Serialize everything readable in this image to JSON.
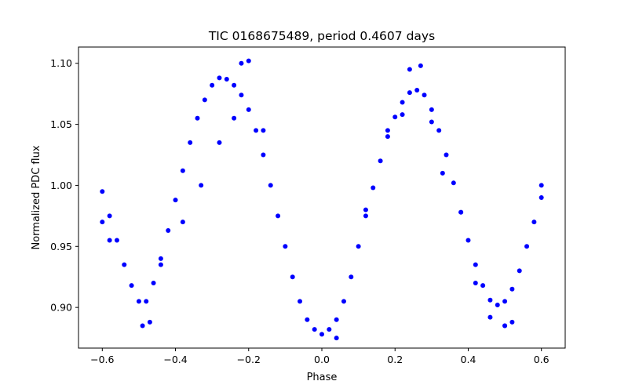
{
  "chart_data": {
    "type": "scatter",
    "title": "TIC 0168675489, period 0.4607 days",
    "xlabel": "Phase",
    "ylabel": "Normalized PDC flux",
    "xlim": [
      -0.665,
      0.665
    ],
    "ylim": [
      0.8667,
      1.1133
    ],
    "xticks": [
      -0.6,
      -0.4,
      -0.2,
      0.0,
      0.2,
      0.4,
      0.6
    ],
    "xtick_labels": [
      "−0.6",
      "−0.4",
      "−0.2",
      "0.0",
      "0.2",
      "0.4",
      "0.6"
    ],
    "yticks": [
      0.9,
      0.95,
      1.0,
      1.05,
      1.1
    ],
    "ytick_labels": [
      "0.90",
      "0.95",
      "1.00",
      "1.05",
      "1.10"
    ],
    "grid": false,
    "marker_color": "#0000ff",
    "series": [
      {
        "x": [
          -0.6,
          -0.58,
          -0.56,
          -0.54,
          -0.52,
          -0.5,
          -0.48,
          -0.46,
          -0.44,
          -0.42,
          -0.4,
          -0.38,
          -0.36,
          -0.34,
          -0.32,
          -0.3,
          -0.28,
          -0.26,
          -0.24,
          -0.22,
          -0.2,
          -0.18,
          -0.16,
          -0.14,
          -0.12,
          -0.1,
          -0.08,
          -0.06,
          -0.04,
          -0.02,
          0.0,
          0.02,
          0.04,
          0.06,
          0.08,
          0.1,
          0.12,
          0.14,
          0.16,
          0.18,
          0.2,
          0.22,
          0.24,
          0.26,
          0.28,
          0.3,
          0.32,
          0.34,
          0.36,
          0.38,
          0.4,
          0.42,
          0.44,
          0.46,
          0.48,
          0.5,
          0.52,
          0.54,
          0.56,
          0.58,
          0.6,
          -0.58,
          -0.44,
          -0.38,
          -0.33,
          -0.28,
          -0.24,
          -0.22,
          -0.2,
          -0.16,
          0.04,
          0.12,
          0.18,
          0.22,
          0.24,
          0.27,
          0.3,
          0.33,
          0.38,
          0.42,
          0.46,
          0.5,
          -0.6,
          -0.49,
          -0.47,
          0.6,
          0.5,
          0.52
        ],
        "y": [
          0.995,
          0.975,
          0.955,
          0.935,
          0.918,
          0.905,
          0.905,
          0.92,
          0.94,
          0.963,
          0.988,
          1.012,
          1.035,
          1.055,
          1.07,
          1.082,
          1.088,
          1.087,
          1.082,
          1.074,
          1.062,
          1.045,
          1.025,
          1.0,
          0.975,
          0.95,
          0.925,
          0.905,
          0.89,
          0.882,
          0.878,
          0.882,
          0.89,
          0.905,
          0.925,
          0.95,
          0.975,
          0.998,
          1.02,
          1.04,
          1.056,
          1.068,
          1.076,
          1.078,
          1.074,
          1.062,
          1.045,
          1.025,
          1.002,
          0.978,
          0.955,
          0.935,
          0.918,
          0.906,
          0.902,
          0.905,
          0.915,
          0.93,
          0.95,
          0.97,
          0.99,
          0.955,
          0.935,
          0.97,
          1.0,
          1.035,
          1.055,
          1.1,
          1.102,
          1.045,
          0.875,
          0.98,
          1.045,
          1.058,
          1.095,
          1.098,
          1.052,
          1.01,
          0.978,
          0.92,
          0.892,
          0.885,
          0.97,
          0.885,
          0.888,
          1.0,
          0.885,
          0.888
        ]
      }
    ]
  }
}
